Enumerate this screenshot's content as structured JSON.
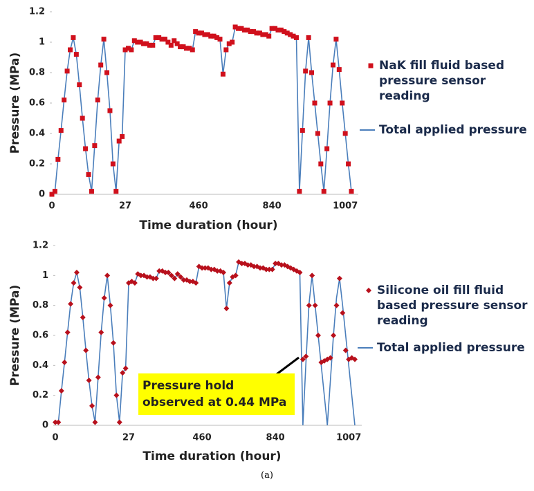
{
  "chart_data": [
    {
      "type": "line",
      "xlabel": "Time duration (hour)",
      "ylabel": "Pressure (MPa)",
      "ylim": [
        0,
        1.2
      ],
      "yticks": [
        0,
        0.2,
        0.4,
        0.6,
        0.8,
        1,
        1.2
      ],
      "categories": [
        "0",
        null,
        null,
        null,
        null,
        null,
        null,
        null,
        null,
        null,
        null,
        null,
        null,
        null,
        null,
        null,
        null,
        null,
        null,
        null,
        null,
        null,
        null,
        null,
        "27",
        null,
        null,
        null,
        null,
        null,
        null,
        null,
        null,
        null,
        null,
        null,
        null,
        null,
        null,
        null,
        null,
        null,
        null,
        null,
        null,
        null,
        null,
        null,
        "460",
        null,
        null,
        null,
        null,
        null,
        null,
        null,
        null,
        null,
        null,
        null,
        null,
        null,
        null,
        null,
        null,
        null,
        null,
        null,
        null,
        null,
        null,
        null,
        "840",
        null,
        null,
        null,
        null,
        null,
        null,
        null,
        null,
        null,
        null,
        null,
        null,
        null,
        null,
        null,
        null,
        null,
        null,
        null,
        null,
        null,
        null,
        null,
        "1007",
        null,
        null
      ],
      "series": [
        {
          "name": "NaK fill fluid based pressure sensor reading",
          "style": "markers",
          "marker": "square",
          "color": "#d0101c",
          "values": [
            0,
            0.02,
            0.23,
            0.42,
            0.62,
            0.81,
            0.95,
            1.03,
            0.92,
            0.72,
            0.5,
            0.3,
            0.13,
            0.02,
            0.32,
            0.62,
            0.85,
            1.02,
            0.8,
            0.55,
            0.2,
            0.02,
            0.35,
            0.38,
            0.95,
            0.96,
            0.95,
            1.01,
            1.0,
            1.0,
            0.99,
            0.99,
            0.98,
            0.98,
            1.03,
            1.03,
            1.02,
            1.02,
            1.0,
            0.98,
            1.01,
            0.99,
            0.97,
            0.97,
            0.96,
            0.96,
            0.95,
            1.07,
            1.06,
            1.06,
            1.05,
            1.05,
            1.04,
            1.04,
            1.03,
            1.02,
            0.79,
            0.95,
            0.99,
            1.0,
            1.1,
            1.09,
            1.09,
            1.08,
            1.08,
            1.07,
            1.07,
            1.06,
            1.06,
            1.05,
            1.05,
            1.04,
            1.09,
            1.09,
            1.08,
            1.08,
            1.07,
            1.06,
            1.05,
            1.04,
            1.03,
            0.02,
            0.42,
            0.81,
            1.03,
            0.8,
            0.6,
            0.4,
            0.2,
            0.02,
            0.3,
            0.6,
            0.85,
            1.02,
            0.82,
            0.6,
            0.4,
            0.2,
            0.02
          ]
        },
        {
          "name": "Total applied pressure",
          "style": "line",
          "color": "#4a7ebb",
          "values": [
            0,
            0.02,
            0.23,
            0.42,
            0.62,
            0.81,
            0.95,
            1.03,
            0.92,
            0.72,
            0.5,
            0.3,
            0.13,
            0.02,
            0.32,
            0.62,
            0.85,
            1.02,
            0.8,
            0.55,
            0.2,
            0.02,
            0.35,
            0.38,
            0.95,
            0.96,
            0.95,
            1.01,
            1.0,
            1.0,
            0.99,
            0.99,
            0.98,
            0.98,
            1.03,
            1.03,
            1.02,
            1.02,
            1.0,
            0.98,
            1.01,
            0.99,
            0.97,
            0.97,
            0.96,
            0.96,
            0.95,
            1.07,
            1.06,
            1.06,
            1.05,
            1.05,
            1.04,
            1.04,
            1.03,
            1.02,
            0.79,
            0.95,
            0.99,
            1.0,
            1.1,
            1.09,
            1.09,
            1.08,
            1.08,
            1.07,
            1.07,
            1.06,
            1.06,
            1.05,
            1.05,
            1.04,
            1.09,
            1.09,
            1.08,
            1.08,
            1.07,
            1.06,
            1.05,
            1.04,
            1.03,
            0.02,
            0.42,
            0.81,
            1.03,
            0.8,
            0.6,
            0.4,
            0.2,
            0.02,
            0.3,
            0.6,
            0.85,
            1.02,
            0.82,
            0.6,
            0.4,
            0.2,
            0.02
          ]
        }
      ]
    },
    {
      "type": "line",
      "xlabel": "Time duration (hour)",
      "ylabel": "Pressure (MPa)",
      "ylim": [
        0,
        1.2
      ],
      "yticks": [
        0,
        0.2,
        0.4,
        0.6,
        0.8,
        1,
        1.2
      ],
      "annotation": [
        "Pressure hold",
        "observed at 0.44 MPa"
      ],
      "categories": [
        "0",
        null,
        null,
        null,
        null,
        null,
        null,
        null,
        null,
        null,
        null,
        null,
        null,
        null,
        null,
        null,
        null,
        null,
        null,
        null,
        null,
        null,
        null,
        null,
        "27",
        null,
        null,
        null,
        null,
        null,
        null,
        null,
        null,
        null,
        null,
        null,
        null,
        null,
        null,
        null,
        null,
        null,
        null,
        null,
        null,
        null,
        null,
        null,
        "460",
        null,
        null,
        null,
        null,
        null,
        null,
        null,
        null,
        null,
        null,
        null,
        null,
        null,
        null,
        null,
        null,
        null,
        null,
        null,
        null,
        null,
        null,
        null,
        "840",
        null,
        null,
        null,
        null,
        null,
        null,
        null,
        null,
        null,
        null,
        null,
        null,
        null,
        null,
        null,
        null,
        null,
        null,
        null,
        null,
        null,
        null,
        null,
        "1007",
        null,
        null
      ],
      "series": [
        {
          "name": "Silicone oil fill fluid based pressure sensor reading",
          "style": "markers",
          "marker": "diamond",
          "color": "#b8101c",
          "values": [
            0.02,
            0.02,
            0.23,
            0.42,
            0.62,
            0.81,
            0.95,
            1.02,
            0.92,
            0.72,
            0.5,
            0.3,
            0.13,
            0.02,
            0.32,
            0.62,
            0.85,
            1.0,
            0.8,
            0.55,
            0.2,
            0.02,
            0.35,
            0.38,
            0.95,
            0.96,
            0.95,
            1.01,
            1.0,
            1.0,
            0.99,
            0.99,
            0.98,
            0.98,
            1.03,
            1.03,
            1.02,
            1.02,
            1.0,
            0.98,
            1.01,
            0.99,
            0.97,
            0.97,
            0.96,
            0.96,
            0.95,
            1.06,
            1.05,
            1.05,
            1.05,
            1.04,
            1.04,
            1.03,
            1.03,
            1.02,
            0.78,
            0.95,
            0.99,
            1.0,
            1.09,
            1.08,
            1.08,
            1.07,
            1.07,
            1.06,
            1.06,
            1.05,
            1.05,
            1.04,
            1.04,
            1.04,
            1.08,
            1.08,
            1.07,
            1.07,
            1.06,
            1.05,
            1.04,
            1.03,
            1.02,
            0.44,
            0.46,
            0.8,
            1.0,
            0.8,
            0.6,
            0.42,
            0.43,
            0.44,
            0.45,
            0.6,
            0.8,
            0.98,
            0.75,
            0.5,
            0.44,
            0.45,
            0.44
          ]
        },
        {
          "name": "Total applied pressure",
          "style": "line",
          "color": "#4a7ebb",
          "values": [
            0.02,
            0.02,
            0.23,
            0.42,
            0.62,
            0.81,
            0.95,
            1.02,
            0.92,
            0.72,
            0.5,
            0.3,
            0.13,
            0.02,
            0.32,
            0.62,
            0.85,
            1.0,
            0.8,
            0.55,
            0.2,
            0.02,
            0.35,
            0.38,
            0.95,
            0.96,
            0.95,
            1.01,
            1.0,
            1.0,
            0.99,
            0.99,
            0.98,
            0.98,
            1.03,
            1.03,
            1.02,
            1.02,
            1.0,
            0.98,
            1.01,
            0.99,
            0.97,
            0.97,
            0.96,
            0.96,
            0.95,
            1.06,
            1.05,
            1.05,
            1.05,
            1.04,
            1.04,
            1.03,
            1.03,
            1.02,
            0.78,
            0.95,
            0.99,
            1.0,
            1.09,
            1.08,
            1.08,
            1.07,
            1.07,
            1.06,
            1.06,
            1.05,
            1.05,
            1.04,
            1.04,
            1.04,
            1.08,
            1.08,
            1.07,
            1.07,
            1.06,
            1.05,
            1.04,
            1.03,
            1.02,
            0,
            0.42,
            0.81,
            1.0,
            0.8,
            0.6,
            0.4,
            0.2,
            0,
            0.3,
            0.6,
            0.85,
            0.98,
            0.8,
            0.6,
            0.4,
            0.2,
            0
          ]
        }
      ]
    }
  ],
  "caption": "(a)"
}
